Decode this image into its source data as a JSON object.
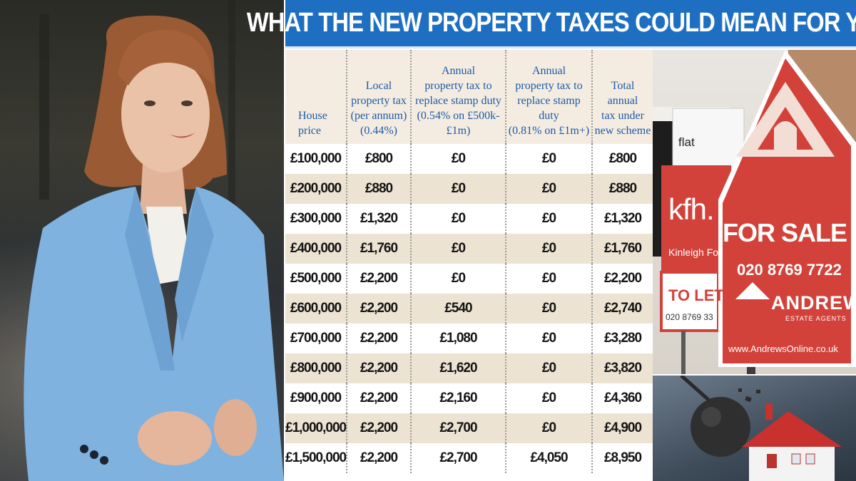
{
  "banner": {
    "title": "WHAT THE NEW PROPERTY TAXES COULD MEAN FOR YOU"
  },
  "table": {
    "headers": [
      [
        "House",
        "price"
      ],
      [
        "Local",
        "property tax",
        "(per annum)",
        "(0.44%)"
      ],
      [
        "Annual",
        "property tax to",
        "replace stamp duty",
        "(0.54% on £500k-£1m)"
      ],
      [
        "Annual",
        "property tax to",
        "replace stamp duty",
        "(0.81% on £1m+)"
      ],
      [
        "Total",
        "annual",
        "tax under",
        "new scheme"
      ]
    ],
    "rows": [
      [
        "£100,000",
        "£800",
        "£0",
        "£0",
        "£800"
      ],
      [
        "£200,000",
        "£880",
        "£0",
        "£0",
        "£880"
      ],
      [
        "£300,000",
        "£1,320",
        "£0",
        "£0",
        "£1,320"
      ],
      [
        "£400,000",
        "£1,760",
        "£0",
        "£0",
        "£1,760"
      ],
      [
        "£500,000",
        "£2,200",
        "£0",
        "£0",
        "£2,200"
      ],
      [
        "£600,000",
        "£2,200",
        "£540",
        "£0",
        "£2,740"
      ],
      [
        "£700,000",
        "£2,200",
        "£1,080",
        "£0",
        "£3,280"
      ],
      [
        "£800,000",
        "£2,200",
        "£1,620",
        "£0",
        "£3,820"
      ],
      [
        "£900,000",
        "£2,200",
        "£2,160",
        "£0",
        "£4,360"
      ],
      [
        "£1,000,000",
        "£2,200",
        "£2,700",
        "£0",
        "£4,900"
      ],
      [
        "£1,500,000",
        "£2,200",
        "£2,700",
        "£4,050",
        "£8,950"
      ]
    ]
  },
  "signs": {
    "kfh_brand": "kfh.",
    "kfh_name": "Kinleigh Fo",
    "to_let": "TO LET",
    "to_let_phone": "020 8769 33",
    "flat": "flat",
    "for_sale": "FOR SALE",
    "phone": "020 8769 7722",
    "agency": "ANDREWS",
    "agency_sub": "ESTATE AGENTS",
    "website": "www.AndrewsOnline.co.uk"
  },
  "colors": {
    "banner_blue": "#1e6fc1",
    "header_text": "#1c5aa8",
    "row_shade": "#ede3d2",
    "header_bg": "#f4ece0",
    "sign_red": "#d2423a"
  }
}
